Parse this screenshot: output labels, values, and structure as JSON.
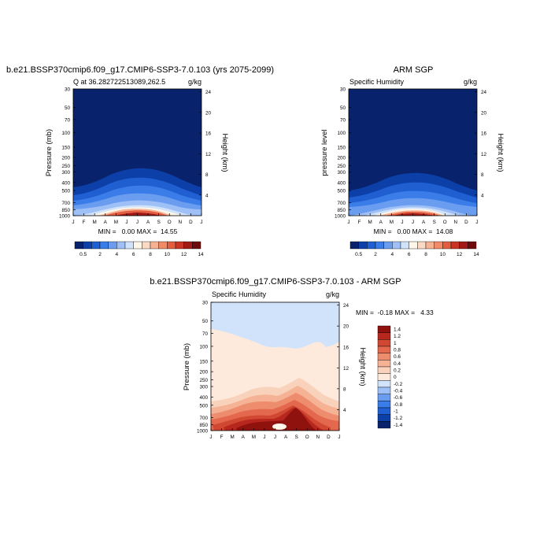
{
  "chart_data": [
    {
      "type": "heatmap",
      "title": "b.e21.BSSP370cmip6.f09_g17.CMIP6-SSP3-7.0.103 (yrs 2075-2099)",
      "subtitle_left": "Q at 36.282722513089,262.5",
      "subtitle_right": "g/kg",
      "ylabel": "Pressure (mb)",
      "ylabel_right": "Height (km)",
      "x_ticks": [
        "J",
        "F",
        "M",
        "A",
        "M",
        "J",
        "J",
        "A",
        "S",
        "O",
        "N",
        "D",
        "J"
      ],
      "y_ticks": [
        "30",
        "50",
        "70",
        "100",
        "150",
        "200",
        "250",
        "300",
        "400",
        "500",
        "700",
        "850",
        "1000"
      ],
      "y2_ticks": [
        "24",
        "20",
        "16",
        "12",
        "8",
        "4"
      ],
      "stats": "MIN =   0.00 MAX =  14.55",
      "colorbar_labels": [
        "0.5",
        "2",
        "4",
        "6",
        "8",
        "10",
        "12",
        "14"
      ],
      "monthly_near_surface_q": [
        5.0,
        5.3,
        6.5,
        8.5,
        11.0,
        13.6,
        14.55,
        14.2,
        12.0,
        8.8,
        6.2,
        5.1,
        5.0
      ],
      "moist_layer_top_pressure": [
        450,
        450,
        420,
        380,
        330,
        300,
        290,
        300,
        330,
        380,
        420,
        450,
        450
      ]
    },
    {
      "type": "heatmap",
      "title": "ARM SGP",
      "subtitle_left": "Specific Humidity",
      "subtitle_right": "g/kg",
      "ylabel": "pressure level",
      "ylabel_right": "Height (km)",
      "x_ticks": [
        "J",
        "F",
        "M",
        "A",
        "M",
        "J",
        "J",
        "A",
        "S",
        "O",
        "N",
        "D",
        "J"
      ],
      "y_ticks": [
        "30",
        "50",
        "70",
        "100",
        "150",
        "200",
        "250",
        "300",
        "400",
        "500",
        "700",
        "850",
        "1000"
      ],
      "y2_ticks": [
        "24",
        "20",
        "16",
        "12",
        "8",
        "4"
      ],
      "stats": "MIN =   0.00 MAX =  14.08",
      "colorbar_labels": [
        "0.5",
        "2",
        "4",
        "6",
        "8",
        "10",
        "12",
        "14"
      ],
      "monthly_near_surface_q": [
        4.8,
        5.0,
        6.0,
        8.0,
        10.5,
        13.2,
        14.08,
        13.8,
        11.2,
        8.0,
        5.8,
        4.9,
        4.8
      ],
      "moist_layer_top_pressure": [
        480,
        480,
        450,
        400,
        350,
        320,
        310,
        320,
        350,
        400,
        450,
        480,
        480
      ]
    },
    {
      "type": "heatmap",
      "title": "b.e21.BSSP370cmip6.f09_g17.CMIP6-SSP3-7.0.103 - ARM SGP",
      "subtitle_left": "Specific Humidity",
      "subtitle_right": "g/kg",
      "ylabel": "Pressure (mb)",
      "ylabel_right": "Height (km)",
      "x_ticks": [
        "J",
        "F",
        "M",
        "A",
        "M",
        "J",
        "J",
        "A",
        "S",
        "O",
        "N",
        "D",
        "J"
      ],
      "y_ticks": [
        "30",
        "50",
        "70",
        "100",
        "150",
        "200",
        "250",
        "300",
        "400",
        "500",
        "700",
        "850",
        "1000"
      ],
      "y2_ticks": [
        "24",
        "20",
        "16",
        "12",
        "8",
        "4"
      ],
      "stats": "MIN =  -0.18 MAX =   4.33",
      "colorbar_labels": [
        "1.4",
        "1.2",
        "1",
        "0.8",
        "0.6",
        "0.4",
        "0.2",
        "0",
        "-0.2",
        "-0.4",
        "-0.6",
        "-0.8",
        "-1",
        "-1.2",
        "-1.4"
      ]
    }
  ],
  "colors": {
    "abs_levels": [
      "#08236b",
      "#0c3fa8",
      "#1f5fd1",
      "#3a7ce8",
      "#6a9cf0",
      "#9ec0f7",
      "#d1e3fb",
      "#fff6ea",
      "#fbd9c2",
      "#f6b293",
      "#f08a67",
      "#e35e41",
      "#c93425",
      "#a11a15",
      "#6f0a0a"
    ],
    "diff_levels": [
      "#08236b",
      "#0c3fa8",
      "#1f5fd1",
      "#3a7ce8",
      "#6a9cf0",
      "#9ec0f7",
      "#d1e3fb",
      "#fdeadc",
      "#f9d2bb",
      "#f5b295",
      "#ee8d6e",
      "#e4684d",
      "#d14832",
      "#b8271d",
      "#8f120f"
    ]
  }
}
